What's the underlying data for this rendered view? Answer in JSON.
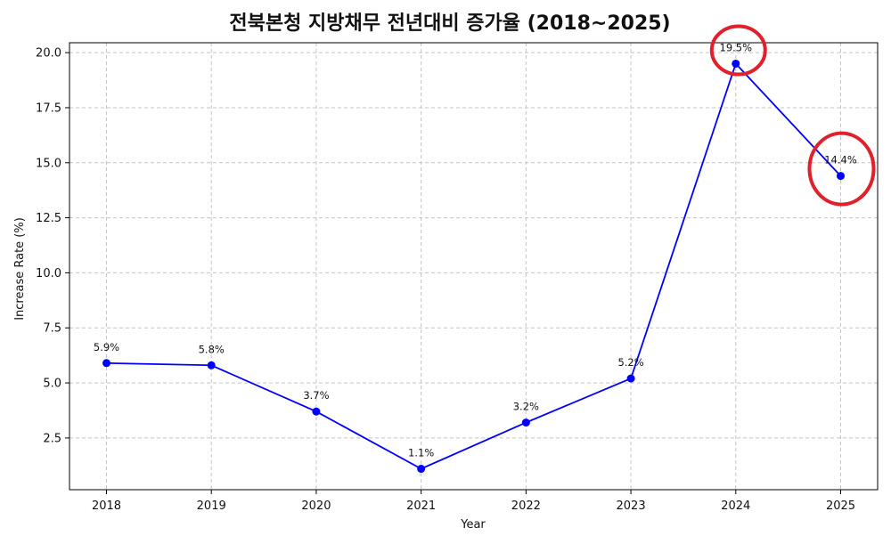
{
  "chart_data": {
    "type": "line",
    "title": "전북본청 지방채무 전년대비 증가율 (2018~2025)",
    "xlabel": "Year",
    "ylabel": "Increase Rate (%)",
    "categories": [
      "2018",
      "2019",
      "2020",
      "2021",
      "2022",
      "2023",
      "2024",
      "2025"
    ],
    "series": [
      {
        "values": [
          5.9,
          5.8,
          3.7,
          1.1,
          3.2,
          5.2,
          19.5,
          14.4
        ],
        "labels": [
          "5.9%",
          "5.8%",
          "3.7%",
          "1.1%",
          "3.2%",
          "5.2%",
          "19.5%",
          "14.4%"
        ],
        "color": "#0000ff"
      }
    ],
    "yticks": [
      "2.5",
      "5.0",
      "7.5",
      "10.0",
      "12.5",
      "15.0",
      "17.5",
      "20.0"
    ],
    "ylim": [
      0.15,
      20.45
    ],
    "grid": true,
    "legend": "none",
    "highlighted_points": [
      "2024",
      "2025"
    ],
    "highlight_color": "#e0202a"
  }
}
